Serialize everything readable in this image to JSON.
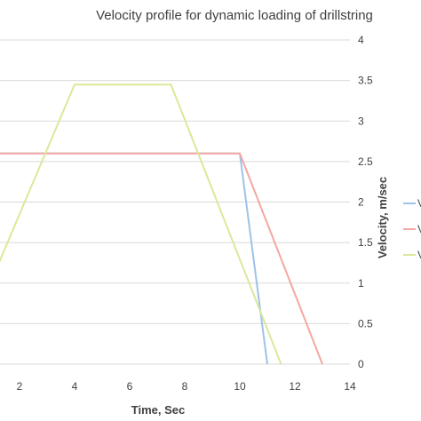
{
  "chart_data": {
    "type": "line",
    "title": "Velocity profile for dynamic loading of drillstring",
    "xlabel": "Time, Sec",
    "ylabel": "Velocity, m/sec",
    "xlim": [
      1,
      14
    ],
    "ylim": [
      0,
      4
    ],
    "x_ticks": [
      "2",
      "4",
      "6",
      "8",
      "10",
      "12",
      "14"
    ],
    "y_ticks": [
      "0",
      "0.5",
      "1",
      "1.5",
      "2",
      "2.5",
      "3",
      "3.5",
      "4"
    ],
    "grid": true,
    "legend_position": "right",
    "series": [
      {
        "name": "V",
        "color": "#9dc3e6",
        "x": [
          0,
          10,
          11
        ],
        "y": [
          2.6,
          2.6,
          0
        ]
      },
      {
        "name": "V",
        "color": "#f4a7a3",
        "x": [
          0,
          10,
          13
        ],
        "y": [
          2.6,
          2.6,
          0
        ]
      },
      {
        "name": "V",
        "color": "#dbe89b",
        "x": [
          1,
          4,
          7.5,
          11.5
        ],
        "y": [
          1.05,
          3.45,
          3.45,
          0
        ]
      }
    ]
  }
}
